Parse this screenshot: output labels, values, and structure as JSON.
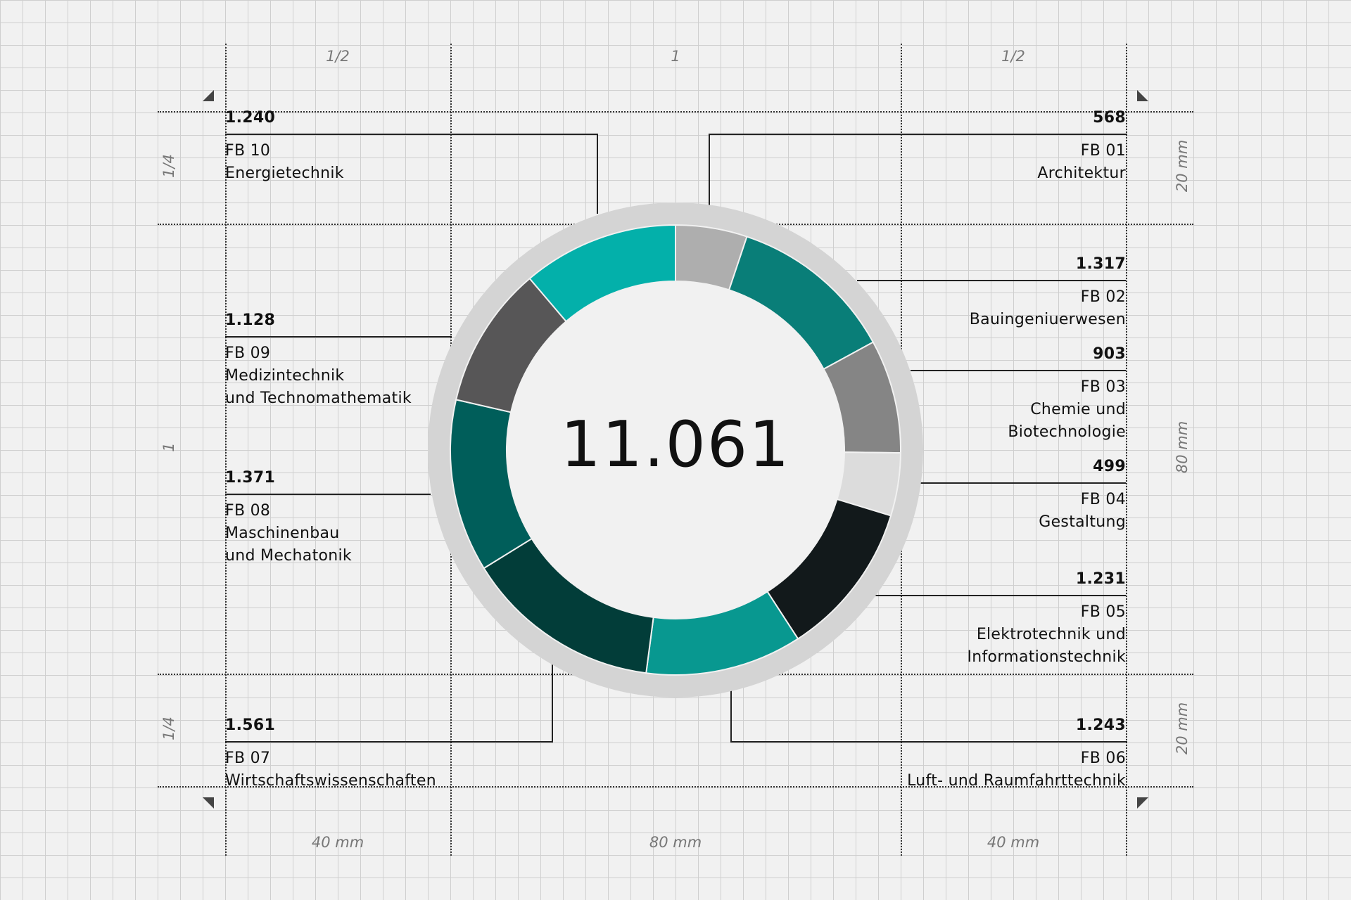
{
  "chart_data": {
    "type": "donut",
    "total": "11.061",
    "series": [
      {
        "code": "FB 01",
        "value": 568,
        "value_label": "568",
        "lines": [
          "FB 01",
          "Architektur"
        ],
        "color": "#aeaeae"
      },
      {
        "code": "FB 02",
        "value": 1317,
        "value_label": "1.317",
        "lines": [
          "FB 02",
          "Bauingeniuerwesen"
        ],
        "color": "#097e78"
      },
      {
        "code": "FB 03",
        "value": 903,
        "value_label": "903",
        "lines": [
          "FB 03",
          "Chemie und",
          "Biotechnologie"
        ],
        "color": "#858585"
      },
      {
        "code": "FB 04",
        "value": 499,
        "value_label": "499",
        "lines": [
          "FB 04",
          "Gestaltung"
        ],
        "color": "#dcdcdc"
      },
      {
        "code": "FB 05",
        "value": 1231,
        "value_label": "1.231",
        "lines": [
          "FB 05",
          "Elektrotechnik und",
          "Informationstechnik"
        ],
        "color": "#12191b"
      },
      {
        "code": "FB 06",
        "value": 1243,
        "value_label": "1.243",
        "lines": [
          "FB 06",
          "Luft- und Raumfahrttechnik"
        ],
        "color": "#089890"
      },
      {
        "code": "FB 07",
        "value": 1561,
        "value_label": "1.561",
        "lines": [
          "FB 07",
          "Wirtschaftswissenschaften"
        ],
        "color": "#023d39"
      },
      {
        "code": "FB 08",
        "value": 1371,
        "value_label": "1.371",
        "lines": [
          "FB 08",
          "Maschinenbau",
          "und Mechatonik"
        ],
        "color": "#005e5a"
      },
      {
        "code": "FB 09",
        "value": 1128,
        "value_label": "1.128",
        "lines": [
          "FB 09",
          "Medizintechnik",
          "und Technomathematik"
        ],
        "color": "#575657"
      },
      {
        "code": "FB 10",
        "value": 1240,
        "value_label": "1.240",
        "lines": [
          "FB 10",
          "Energietechnik"
        ],
        "color": "#03b0aa"
      }
    ]
  },
  "dimensions": {
    "top": [
      "1/2",
      "1",
      "1/2"
    ],
    "bottom": [
      "40 mm",
      "80 mm",
      "40 mm"
    ],
    "left": [
      "1/4",
      "1",
      "1/4"
    ],
    "right": [
      "20 mm",
      "80 mm",
      "20 mm"
    ]
  },
  "colors": {
    "background": "#f1f1f1",
    "grid": "#cfcfcf",
    "outer_ring": "#d4d4d4",
    "inner_disc": "#f1f1f1"
  }
}
